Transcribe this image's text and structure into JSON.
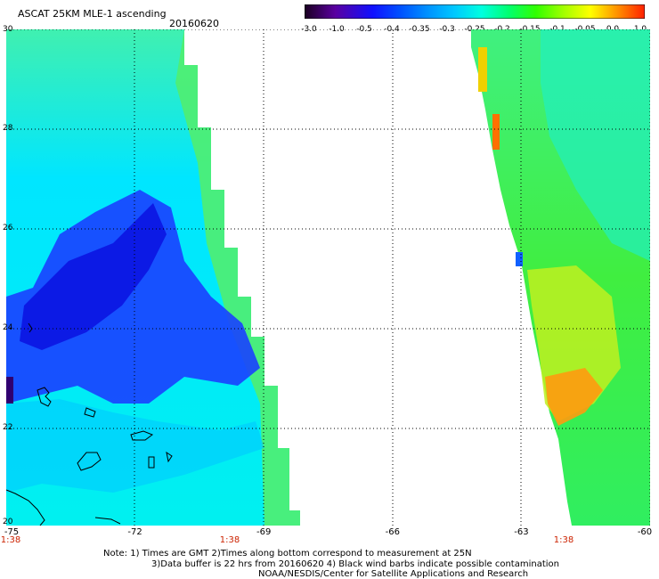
{
  "header": {
    "title": "ASCAT 25KM MLE-1 ascending",
    "date": "20160620"
  },
  "colorbar": {
    "labels": [
      "-3.0",
      "-1.0",
      "-0.5",
      "-0.4",
      "-0.35",
      "-0.3",
      "-0.25",
      "-0.2",
      "-0.15",
      "-0.1",
      "-0.05",
      "0.0",
      "1.0"
    ],
    "colors": [
      "#1a0020",
      "#5a00a0",
      "#1010ff",
      "#0050ff",
      "#0090ff",
      "#00c8ff",
      "#00ffe0",
      "#00ff70",
      "#30ff00",
      "#a0ff00",
      "#ffff00",
      "#ff9000",
      "#ff2000"
    ]
  },
  "axes": {
    "y_labels": [
      "30",
      "28",
      "26",
      "24",
      "22",
      "20"
    ],
    "x_labels": [
      "-75",
      "-72",
      "-69",
      "-66",
      "-63",
      "-60"
    ],
    "time_labels": [
      "1:38",
      "1:38",
      "1:38"
    ],
    "lat_range": [
      20,
      30
    ],
    "lon_range": [
      -75,
      -60
    ]
  },
  "notes": {
    "line1": "Note: 1) Times are GMT 2)Times along bottom correspond to measurement at 25N",
    "line2": "3)Data buffer is 22 hrs from 20160620 4) Black wind barbs indicate possible contamination",
    "line3": "NOAA/NESDIS/Center for Satellite Applications and Research"
  }
}
